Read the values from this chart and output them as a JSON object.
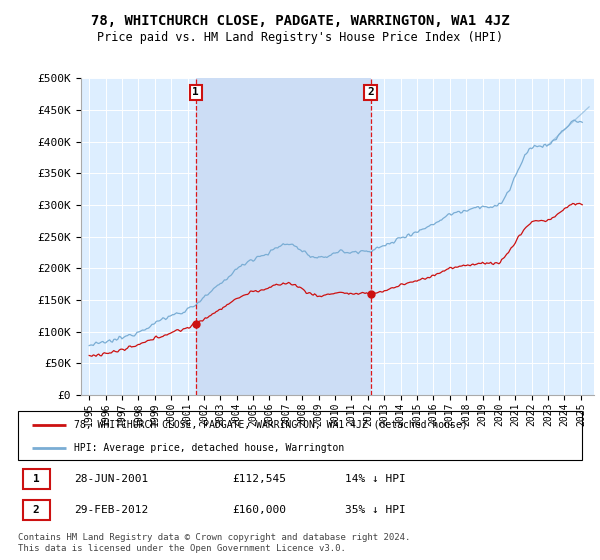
{
  "title_line1": "78, WHITCHURCH CLOSE, PADGATE, WARRINGTON, WA1 4JZ",
  "title_line2": "Price paid vs. HM Land Registry's House Price Index (HPI)",
  "ylabel_ticks": [
    "£0",
    "£50K",
    "£100K",
    "£150K",
    "£200K",
    "£250K",
    "£300K",
    "£350K",
    "£400K",
    "£450K",
    "£500K"
  ],
  "ytick_values": [
    0,
    50000,
    100000,
    150000,
    200000,
    250000,
    300000,
    350000,
    400000,
    450000,
    500000
  ],
  "xtick_labels": [
    "1995",
    "1996",
    "1997",
    "1998",
    "1999",
    "2000",
    "2001",
    "2002",
    "2003",
    "2004",
    "2005",
    "2006",
    "2007",
    "2008",
    "2009",
    "2010",
    "2011",
    "2012",
    "2013",
    "2014",
    "2015",
    "2016",
    "2017",
    "2018",
    "2019",
    "2020",
    "2021",
    "2022",
    "2023",
    "2024",
    "2025"
  ],
  "sale1_date": 2001.5,
  "sale1_price": 112545,
  "sale1_label": "1",
  "sale2_date": 2012.17,
  "sale2_price": 160000,
  "sale2_label": "2",
  "hpi_color": "#7aadd4",
  "price_color": "#cc1111",
  "background_color": "#ddeeff",
  "shade_color": "#ccddf5",
  "legend_entry1": "78, WHITCHURCH CLOSE, PADGATE, WARRINGTON, WA1 4JZ (detached house)",
  "legend_entry2": "HPI: Average price, detached house, Warrington",
  "annotation1_text": "28-JUN-2001",
  "annotation1_price": "£112,545",
  "annotation1_hpi": "14% ↓ HPI",
  "annotation2_text": "29-FEB-2012",
  "annotation2_price": "£160,000",
  "annotation2_hpi": "35% ↓ HPI",
  "footnote": "Contains HM Land Registry data © Crown copyright and database right 2024.\nThis data is licensed under the Open Government Licence v3.0.",
  "ylim": [
    0,
    500000
  ],
  "xlim_min": 1994.5,
  "xlim_max": 2025.8
}
